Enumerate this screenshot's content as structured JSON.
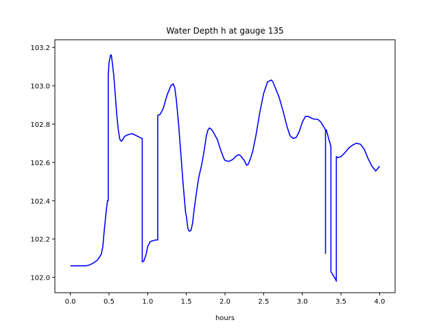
{
  "chart_data": {
    "type": "line",
    "title": "Water Depth h at gauge 135",
    "xlabel": "hours",
    "ylabel": "",
    "xlim": [
      -0.2,
      4.2
    ],
    "ylim": [
      101.92,
      103.24
    ],
    "xticks": [
      0.0,
      0.5,
      1.0,
      1.5,
      2.0,
      2.5,
      3.0,
      3.5,
      4.0
    ],
    "xtick_labels": [
      "0.0",
      "0.5",
      "1.0",
      "1.5",
      "2.0",
      "2.5",
      "3.0",
      "3.5",
      "4.0"
    ],
    "yticks": [
      102.0,
      102.2,
      102.4,
      102.6,
      102.8,
      103.0,
      103.2
    ],
    "ytick_labels": [
      "102.0",
      "102.2",
      "102.4",
      "102.6",
      "102.8",
      "103.0",
      "103.2"
    ],
    "grid": false,
    "series": [
      {
        "name": "",
        "color": "#0000ff",
        "x": [
          0.0,
          0.1,
          0.2,
          0.25,
          0.3,
          0.35,
          0.4,
          0.42,
          0.44,
          0.46,
          0.48,
          0.49,
          0.49,
          0.5,
          0.52,
          0.53,
          0.54,
          0.56,
          0.58,
          0.6,
          0.62,
          0.64,
          0.66,
          0.68,
          0.7,
          0.72,
          0.75,
          0.8,
          0.85,
          0.9,
          0.93,
          0.93,
          0.95,
          0.98,
          1.0,
          1.03,
          1.06,
          1.1,
          1.13,
          1.13,
          1.16,
          1.2,
          1.25,
          1.3,
          1.33,
          1.35,
          1.37,
          1.4,
          1.43,
          1.46,
          1.49,
          1.5,
          1.52,
          1.54,
          1.56,
          1.58,
          1.6,
          1.63,
          1.66,
          1.7,
          1.73,
          1.76,
          1.78,
          1.8,
          1.83,
          1.86,
          1.9,
          1.94,
          1.98,
          2.0,
          2.05,
          2.1,
          2.15,
          2.18,
          2.2,
          2.25,
          2.28,
          2.3,
          2.33,
          2.36,
          2.4,
          2.45,
          2.5,
          2.55,
          2.6,
          2.62,
          2.65,
          2.7,
          2.75,
          2.8,
          2.84,
          2.88,
          2.92,
          2.96,
          3.0,
          3.04,
          3.08,
          3.12,
          3.16,
          3.2,
          3.24,
          3.27,
          3.3,
          3.3,
          3.3,
          3.31,
          3.33,
          3.35,
          3.36,
          3.37,
          3.37,
          3.4,
          3.43,
          3.44,
          3.44,
          3.46,
          3.5,
          3.55,
          3.6,
          3.65,
          3.7,
          3.75,
          3.8,
          3.85,
          3.9,
          3.95,
          4.0
        ],
        "values": [
          102.06,
          102.06,
          102.06,
          102.065,
          102.075,
          102.09,
          102.12,
          102.16,
          102.25,
          102.33,
          102.4,
          102.4,
          103.05,
          103.12,
          103.16,
          103.16,
          103.13,
          103.06,
          102.96,
          102.85,
          102.77,
          102.72,
          102.71,
          102.72,
          102.735,
          102.74,
          102.745,
          102.75,
          102.74,
          102.73,
          102.725,
          102.08,
          102.085,
          102.12,
          102.16,
          102.185,
          102.19,
          102.195,
          102.195,
          102.845,
          102.85,
          102.88,
          102.95,
          103.0,
          103.01,
          102.99,
          102.93,
          102.8,
          102.64,
          102.48,
          102.34,
          102.32,
          102.255,
          102.24,
          102.245,
          102.28,
          102.35,
          102.44,
          102.52,
          102.59,
          102.66,
          102.74,
          102.77,
          102.78,
          102.77,
          102.75,
          102.72,
          102.67,
          102.625,
          102.61,
          102.605,
          102.615,
          102.635,
          102.64,
          102.635,
          102.61,
          102.585,
          102.59,
          102.62,
          102.66,
          102.74,
          102.86,
          102.96,
          103.02,
          103.03,
          103.02,
          102.99,
          102.94,
          102.87,
          102.79,
          102.74,
          102.725,
          102.73,
          102.76,
          102.81,
          102.84,
          102.84,
          102.83,
          102.825,
          102.825,
          102.81,
          102.79,
          102.77,
          102.125,
          102.77,
          102.77,
          102.74,
          102.71,
          102.7,
          102.68,
          102.03,
          102.01,
          101.99,
          101.98,
          102.63,
          102.625,
          102.63,
          102.65,
          102.675,
          102.69,
          102.7,
          102.695,
          102.67,
          102.62,
          102.58,
          102.555,
          102.58
        ]
      }
    ]
  }
}
